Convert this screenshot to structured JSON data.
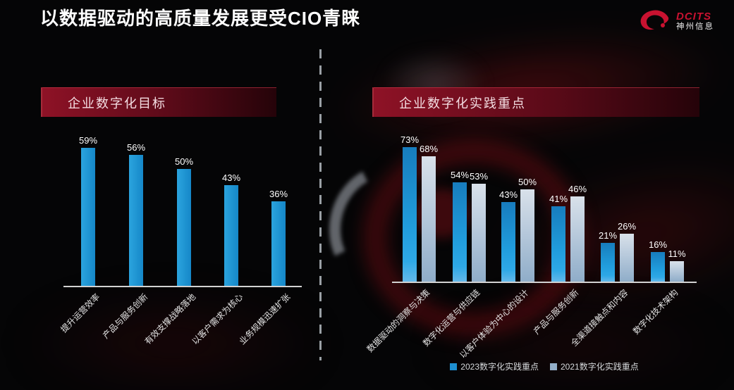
{
  "page": {
    "title": "以数据驱动的高质量发展更受CIO青睐"
  },
  "logo": {
    "brand": "DCITS",
    "name": "神州信息"
  },
  "chart_data": [
    {
      "type": "bar",
      "title": "企业数字化目标",
      "categories": [
        "提升运营效率",
        "产品与服务创新",
        "有效支撑战略落地",
        "以客户需求为核心",
        "业务规模迅速扩张"
      ],
      "values": [
        59,
        56,
        50,
        43,
        36
      ],
      "unit": "%",
      "ylim": [
        0,
        65
      ],
      "grid": "off",
      "legend_position": "none",
      "bar_color": "#1b9ad8"
    },
    {
      "type": "bar",
      "title": "企业数字化实践重点",
      "categories": [
        "数据驱动的洞察与决策",
        "数字化运营与供应链",
        "以客户体验为中心的设计",
        "产品与服务创新",
        "全渠道接触点和内容",
        "数字化技术架构"
      ],
      "series": [
        {
          "name": "2023数字化实践重点",
          "values": [
            73,
            54,
            43,
            41,
            21,
            16
          ],
          "color": "#1e8fd0"
        },
        {
          "name": "2021数字化实践重点",
          "values": [
            68,
            53,
            50,
            46,
            26,
            11
          ],
          "color": "#93aec8"
        }
      ],
      "unit": "%",
      "ylim": [
        0,
        80
      ],
      "grid": "off",
      "legend_position": "bottom"
    }
  ],
  "colors": {
    "background": "#050506",
    "title_text": "#ffffff",
    "banner_red": "#8e1226",
    "axis_line": "#d2d2d2",
    "bar_blue": "#1e8fd0",
    "bar_gray": "#93aec8",
    "brand_red": "#c81230"
  }
}
